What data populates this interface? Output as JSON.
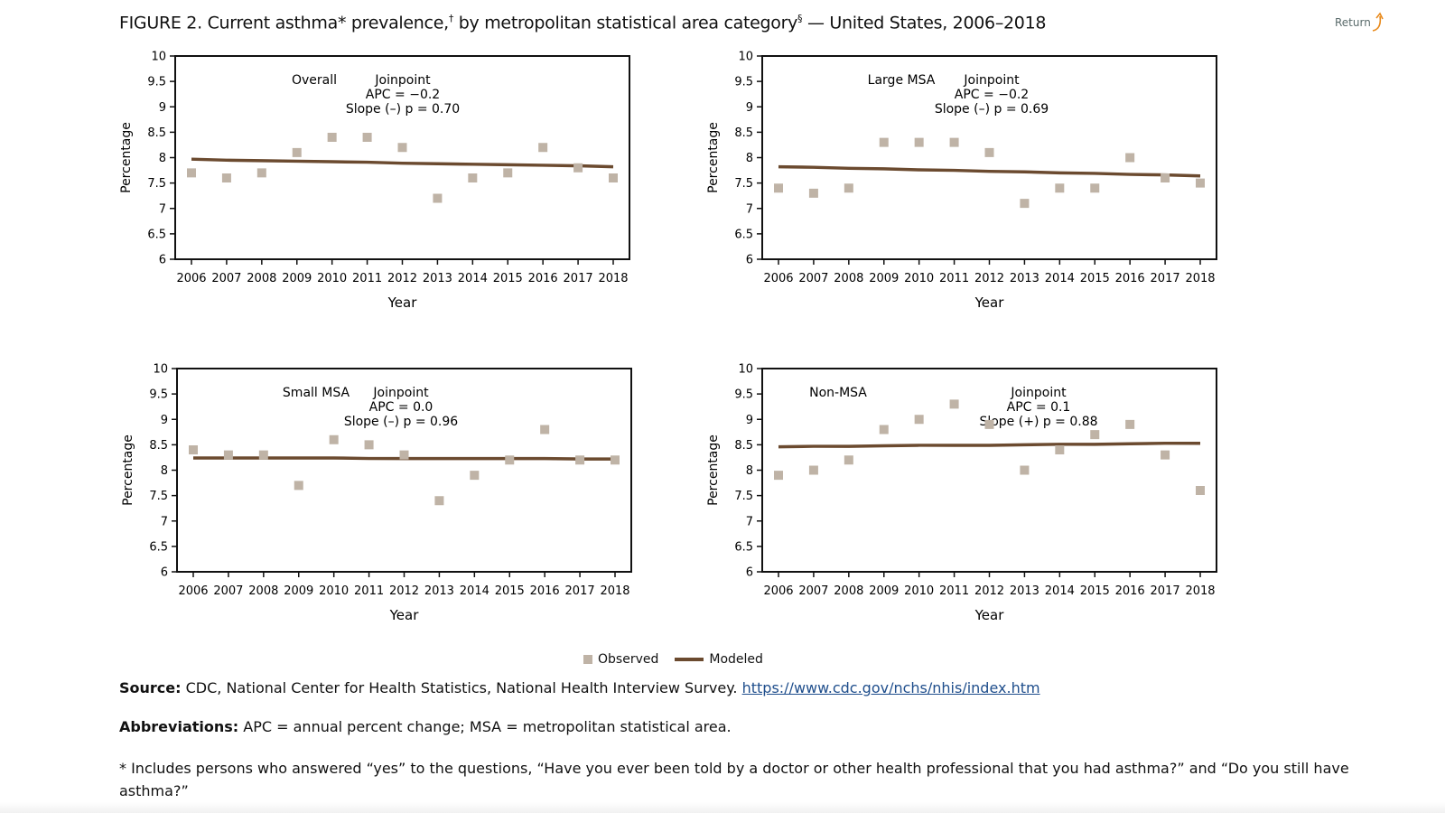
{
  "page": {
    "title_main": "FIGURE 2. Current asthma* prevalence,",
    "title_sup1": "†",
    "title_mid": " by metropolitan statistical area category",
    "title_sup2": "§",
    "title_end": " — United States, 2006–2018",
    "return_label": "Return"
  },
  "legend": {
    "observed_label": "Observed",
    "modeled_label": "Modeled"
  },
  "colors": {
    "observed": "#bfb3a6",
    "modeled": "#6b4a2f",
    "axis": "#111111"
  },
  "notes": {
    "source_label": "Source:",
    "source_text": " CDC, National Center for Health Statistics, National Health Interview Survey. ",
    "source_link": "https://www.cdc.gov/nchs/nhis/index.htm",
    "abbr_label": "Abbreviations:",
    "abbr_text": " APC = annual percent change; MSA = metropolitan statistical area.",
    "footnote_star": "* Includes persons who answered “yes” to the questions, “Have you ever been told by a doctor or other health professional that you had asthma?” and “Do you still have asthma?”"
  },
  "chart_data": [
    {
      "type": "scatter",
      "panel_label": "Overall",
      "annotation": [
        "Joinpoint",
        "APC = −0.2",
        "Slope (–) p = 0.70"
      ],
      "x": [
        2006,
        2007,
        2008,
        2009,
        2010,
        2011,
        2012,
        2013,
        2014,
        2015,
        2016,
        2017,
        2018
      ],
      "x_tick_labels": [
        "2006",
        "2007",
        "2008",
        "2009",
        "2010",
        "2011",
        "2012",
        "2013",
        "2014",
        "2015",
        "2016",
        "2017",
        "2018"
      ],
      "series": [
        {
          "name": "Observed",
          "values": [
            7.7,
            7.6,
            7.7,
            8.1,
            8.4,
            8.4,
            8.2,
            7.2,
            7.6,
            7.7,
            8.2,
            7.8,
            7.6
          ]
        },
        {
          "name": "Modeled",
          "values": [
            7.97,
            7.95,
            7.94,
            7.93,
            7.92,
            7.91,
            7.89,
            7.88,
            7.87,
            7.86,
            7.85,
            7.84,
            7.82
          ]
        }
      ],
      "xlabel": "Year",
      "ylabel": "Percentage",
      "ylim": [
        6,
        10
      ],
      "y_ticks": [
        "6",
        "6.5",
        "7",
        "7.5",
        "8",
        "8.5",
        "9",
        "9.5",
        "10"
      ]
    },
    {
      "type": "scatter",
      "panel_label": "Large MSA",
      "annotation": [
        "Joinpoint",
        "APC = −0.2",
        "Slope (–) p = 0.69"
      ],
      "x": [
        2006,
        2007,
        2008,
        2009,
        2010,
        2011,
        2012,
        2013,
        2014,
        2015,
        2016,
        2017,
        2018
      ],
      "x_tick_labels": [
        "2006",
        "2007",
        "2008",
        "2009",
        "2010",
        "2011",
        "2012",
        "2013",
        "2014",
        "2015",
        "2016",
        "2017",
        "2018"
      ],
      "series": [
        {
          "name": "Observed",
          "values": [
            7.4,
            7.3,
            7.4,
            8.3,
            8.3,
            8.3,
            8.1,
            7.1,
            7.4,
            7.4,
            8.0,
            7.6,
            7.5
          ]
        },
        {
          "name": "Modeled",
          "values": [
            7.82,
            7.81,
            7.79,
            7.78,
            7.76,
            7.75,
            7.73,
            7.72,
            7.7,
            7.69,
            7.67,
            7.66,
            7.64
          ]
        }
      ],
      "xlabel": "Year",
      "ylabel": "Percentage",
      "ylim": [
        6,
        10
      ],
      "y_ticks": [
        "6",
        "6.5",
        "7",
        "7.5",
        "8",
        "8.5",
        "9",
        "9.5",
        "10"
      ]
    },
    {
      "type": "scatter",
      "panel_label": "Small MSA",
      "annotation": [
        "Joinpoint",
        "APC = 0.0",
        "Slope (–) p = 0.96"
      ],
      "x": [
        2006,
        2007,
        2008,
        2009,
        2010,
        2011,
        2012,
        2013,
        2014,
        2015,
        2016,
        2017,
        2018
      ],
      "x_tick_labels": [
        "2006",
        "2007",
        "2008",
        "2009",
        "2010",
        "2011",
        "2012",
        "2013",
        "2014",
        "2015",
        "2016",
        "2017",
        "2018"
      ],
      "series": [
        {
          "name": "Observed",
          "values": [
            8.4,
            8.3,
            8.3,
            7.7,
            8.6,
            8.5,
            8.3,
            7.4,
            7.9,
            8.2,
            8.8,
            8.2,
            8.2
          ]
        },
        {
          "name": "Modeled",
          "values": [
            8.24,
            8.24,
            8.24,
            8.24,
            8.24,
            8.23,
            8.23,
            8.23,
            8.23,
            8.23,
            8.23,
            8.22,
            8.22
          ]
        }
      ],
      "xlabel": "Year",
      "ylabel": "Percentage",
      "ylim": [
        6,
        10
      ],
      "y_ticks": [
        "6",
        "6.5",
        "7",
        "7.5",
        "8",
        "8.5",
        "9",
        "9.5",
        "10"
      ]
    },
    {
      "type": "scatter",
      "panel_label": "Non-MSA",
      "annotation": [
        "Joinpoint",
        "APC = 0.1",
        "Slope (+) p = 0.88"
      ],
      "x": [
        2006,
        2007,
        2008,
        2009,
        2010,
        2011,
        2012,
        2013,
        2014,
        2015,
        2016,
        2017,
        2018
      ],
      "x_tick_labels": [
        "2006",
        "2007",
        "2008",
        "2009",
        "2010",
        "2011",
        "2012",
        "2013",
        "2014",
        "2015",
        "2016",
        "2017",
        "2018"
      ],
      "series": [
        {
          "name": "Observed",
          "values": [
            7.9,
            8.0,
            8.2,
            8.8,
            9.0,
            9.3,
            8.9,
            8.0,
            8.4,
            8.7,
            8.9,
            8.3,
            7.6
          ]
        },
        {
          "name": "Modeled",
          "values": [
            8.46,
            8.47,
            8.47,
            8.48,
            8.49,
            8.49,
            8.49,
            8.5,
            8.51,
            8.51,
            8.52,
            8.53,
            8.53
          ]
        }
      ],
      "xlabel": "Year",
      "ylabel": "Percentage",
      "ylim": [
        6,
        10
      ],
      "y_ticks": [
        "6",
        "6.5",
        "7",
        "7.5",
        "8",
        "8.5",
        "9",
        "9.5",
        "10"
      ]
    }
  ]
}
